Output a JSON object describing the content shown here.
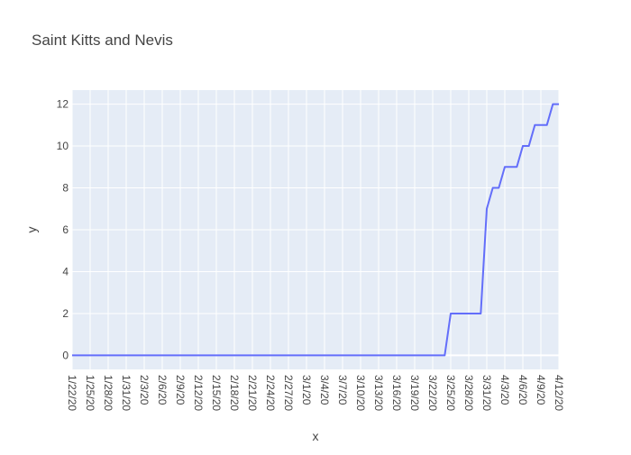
{
  "chart_data": {
    "type": "line",
    "title": "Saint Kitts and Nevis",
    "xlabel": "x",
    "ylabel": "y",
    "x_start": "1/22/20",
    "x_tick_labels": [
      "1/22/20",
      "1/25/20",
      "1/28/20",
      "1/31/20",
      "2/3/20",
      "2/6/20",
      "2/9/20",
      "2/12/20",
      "2/15/20",
      "2/18/20",
      "2/21/20",
      "2/24/20",
      "2/27/20",
      "3/1/20",
      "3/4/20",
      "3/7/20",
      "3/10/20",
      "3/13/20",
      "3/16/20",
      "3/19/20",
      "3/22/20",
      "3/25/20",
      "3/28/20",
      "3/31/20",
      "4/3/20",
      "4/6/20",
      "4/9/20",
      "4/12/20"
    ],
    "y_ticks": [
      0,
      2,
      4,
      6,
      8,
      10,
      12
    ],
    "ylim": [
      -0.67,
      12.67
    ],
    "grid": true,
    "series": [
      {
        "color": "#636efa",
        "points": [
          [
            "1/22/20",
            0
          ],
          [
            "3/24/20",
            0
          ],
          [
            "3/25/20",
            2
          ],
          [
            "3/30/20",
            2
          ],
          [
            "3/31/20",
            7
          ],
          [
            "4/1/20",
            8
          ],
          [
            "4/2/20",
            8
          ],
          [
            "4/3/20",
            9
          ],
          [
            "4/4/20",
            9
          ],
          [
            "4/5/20",
            9
          ],
          [
            "4/6/20",
            10
          ],
          [
            "4/7/20",
            10
          ],
          [
            "4/8/20",
            11
          ],
          [
            "4/9/20",
            11
          ],
          [
            "4/10/20",
            11
          ],
          [
            "4/11/20",
            12
          ],
          [
            "4/12/20",
            12
          ]
        ]
      }
    ]
  }
}
